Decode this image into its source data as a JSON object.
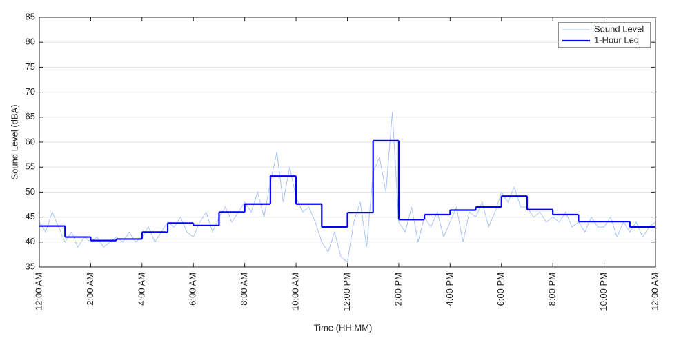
{
  "chart_data": {
    "type": "line",
    "xlabel": "Time (HH:MM)",
    "ylabel": "Sound Level (dBA)",
    "xlim": [
      0,
      24
    ],
    "ylim": [
      35,
      85
    ],
    "xticks": [
      {
        "value": 0,
        "label": "12:00 AM"
      },
      {
        "value": 2,
        "label": "2:00 AM"
      },
      {
        "value": 4,
        "label": "4:00 AM"
      },
      {
        "value": 6,
        "label": "6:00 AM"
      },
      {
        "value": 8,
        "label": "8:00 AM"
      },
      {
        "value": 10,
        "label": "10:00 AM"
      },
      {
        "value": 12,
        "label": "12:00 PM"
      },
      {
        "value": 14,
        "label": "2:00 PM"
      },
      {
        "value": 16,
        "label": "4:00 PM"
      },
      {
        "value": 18,
        "label": "6:00 PM"
      },
      {
        "value": 20,
        "label": "8:00 PM"
      },
      {
        "value": 22,
        "label": "10:00 PM"
      },
      {
        "value": 24,
        "label": "12:00 AM"
      }
    ],
    "yticks": [
      35,
      40,
      45,
      50,
      55,
      60,
      65,
      70,
      75,
      80,
      85
    ],
    "grid": true,
    "legend": "upper right",
    "series": [
      {
        "name": "Sound Level",
        "color": "#a9c4f5",
        "step": false,
        "x": [
          0,
          0.25,
          0.5,
          0.75,
          1,
          1.25,
          1.5,
          1.75,
          2,
          2.25,
          2.5,
          2.75,
          3,
          3.25,
          3.5,
          3.75,
          4,
          4.25,
          4.5,
          4.75,
          5,
          5.25,
          5.5,
          5.75,
          6,
          6.25,
          6.5,
          6.75,
          7,
          7.25,
          7.5,
          7.75,
          8,
          8.25,
          8.5,
          8.75,
          9,
          9.25,
          9.5,
          9.75,
          10,
          10.25,
          10.5,
          10.75,
          11,
          11.25,
          11.5,
          11.75,
          12,
          12.25,
          12.5,
          12.75,
          13,
          13.25,
          13.5,
          13.75,
          14,
          14.25,
          14.5,
          14.75,
          15,
          15.25,
          15.5,
          15.75,
          16,
          16.25,
          16.5,
          16.75,
          17,
          17.25,
          17.5,
          17.75,
          18,
          18.25,
          18.5,
          18.75,
          19,
          19.25,
          19.5,
          19.75,
          20,
          20.25,
          20.5,
          20.75,
          21,
          21.25,
          21.5,
          21.75,
          22,
          22.25,
          22.5,
          22.75,
          23,
          23.25,
          23.5,
          23.75,
          24
        ],
        "values": [
          44,
          42,
          46,
          43,
          40,
          42,
          39,
          41,
          40,
          41,
          39,
          40,
          41,
          40,
          42,
          40,
          41,
          43,
          40,
          42,
          44,
          43,
          45,
          42,
          41,
          44,
          46,
          42,
          45,
          47,
          44,
          46,
          48,
          46,
          50,
          45,
          52,
          58,
          48,
          55,
          49,
          46,
          47,
          44,
          40,
          38,
          42,
          37,
          36,
          44,
          48,
          39,
          54,
          57,
          50,
          66,
          44,
          42,
          47,
          40,
          45,
          43,
          46,
          41,
          44,
          47,
          40,
          46,
          45,
          48,
          43,
          46,
          50,
          48,
          51,
          47,
          47,
          45,
          46,
          44,
          45,
          44,
          46,
          43,
          44,
          42,
          45,
          43,
          43,
          45,
          41,
          44,
          42,
          44,
          41,
          43,
          44
        ]
      },
      {
        "name": "1-Hour Leq",
        "color": "#0000ff",
        "step": true,
        "x": [
          0,
          1,
          2,
          3,
          4,
          5,
          6,
          7,
          8,
          9,
          10,
          11,
          12,
          13,
          14,
          15,
          16,
          17,
          18,
          19,
          20,
          21,
          22,
          23
        ],
        "values": [
          43.2,
          41.0,
          40.3,
          40.6,
          42.0,
          43.8,
          43.3,
          46.0,
          47.6,
          53.2,
          47.6,
          43.0,
          45.9,
          60.3,
          44.5,
          45.5,
          46.4,
          47.0,
          49.2,
          46.5,
          45.5,
          44.1,
          44.1,
          43.0
        ]
      }
    ]
  }
}
